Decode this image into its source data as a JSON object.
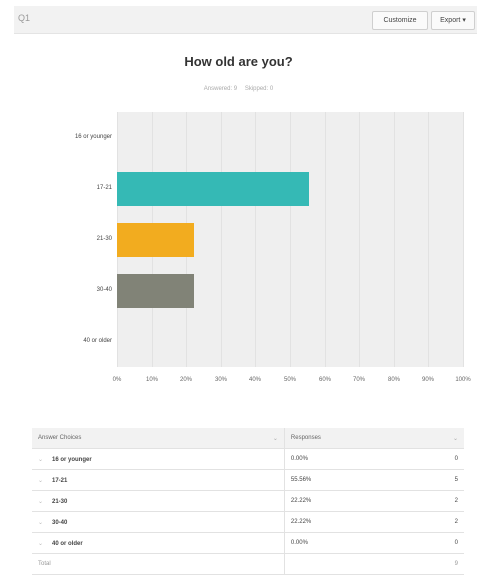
{
  "header": {
    "question_number": "Q1",
    "customize_label": "Customize",
    "export_label": "Export ▾"
  },
  "question": {
    "title": "How old are you?",
    "answered": "Answered: 9",
    "skipped": "Skipped: 0"
  },
  "chart_data": {
    "type": "bar",
    "orientation": "horizontal",
    "categories": [
      "16 or younger",
      "17-21",
      "21-30",
      "30-40",
      "40 or older"
    ],
    "values": [
      0,
      55.56,
      22.22,
      22.22,
      0
    ],
    "colors": [
      "#35b9b5",
      "#35b9b5",
      "#f2ac1f",
      "#818377",
      "#818377"
    ],
    "xlim": [
      0,
      100
    ],
    "tick_labels": [
      "0%",
      "10%",
      "20%",
      "30%",
      "40%",
      "50%",
      "60%",
      "70%",
      "80%",
      "90%",
      "100%"
    ],
    "grid": true
  },
  "table": {
    "headers": [
      "Answer Choices",
      "Responses"
    ],
    "rows": [
      {
        "choice": "16 or younger",
        "percent": "0.00%",
        "count": "0"
      },
      {
        "choice": "17-21",
        "percent": "55.56%",
        "count": "5"
      },
      {
        "choice": "21-30",
        "percent": "22.22%",
        "count": "2"
      },
      {
        "choice": "30-40",
        "percent": "22.22%",
        "count": "2"
      },
      {
        "choice": "40 or older",
        "percent": "0.00%",
        "count": "0"
      }
    ],
    "total_label": "Total",
    "total_value": "9"
  }
}
